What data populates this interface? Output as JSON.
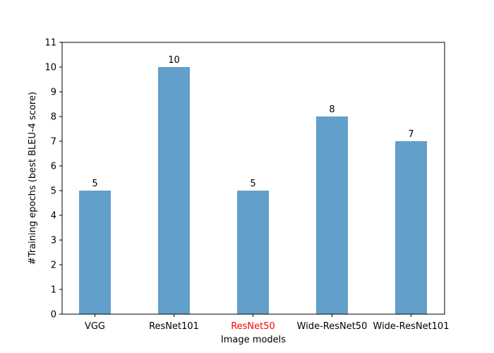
{
  "chart_data": {
    "type": "bar",
    "categories": [
      "VGG",
      "ResNet101",
      "ResNet50",
      "Wide-ResNet50",
      "Wide-ResNet101"
    ],
    "values": [
      5,
      10,
      5,
      8,
      7
    ],
    "data_labels": [
      "5",
      "10",
      "5",
      "8",
      "7"
    ],
    "xlabel": "Image models",
    "ylabel": "#Training epochs (best BLEU-4 score)",
    "ylim": [
      0,
      11
    ],
    "yticks": [
      0,
      1,
      2,
      3,
      4,
      5,
      6,
      7,
      8,
      9,
      10,
      11
    ],
    "grid": false,
    "legend": "none",
    "bar_color": "#629fca",
    "highlight_category": "ResNet50",
    "highlight_color": "#ff0000",
    "tick_color": "#000000"
  }
}
